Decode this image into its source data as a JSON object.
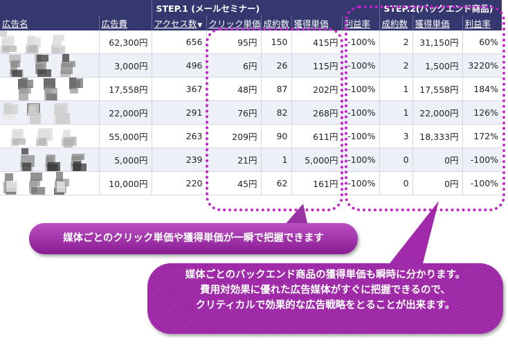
{
  "table": {
    "group_headers": {
      "step1": "STEP.1 (メールセミナー)",
      "step2": "STEP.2(バックエンド商品)"
    },
    "columns": [
      "広告名",
      "広告費",
      "アクセス数",
      "クリック単価",
      "成約数",
      "獲得単価",
      "利益率",
      "成約数",
      "獲得単価",
      "利益率"
    ],
    "sort_indicator": "▼",
    "rows": [
      {
        "cost": "62,300円",
        "access": "656",
        "cpc": "95円",
        "conv": "150",
        "cpa": "415円",
        "roi": "-100%",
        "conv2": "2",
        "cpa2": "31,150円",
        "roi2": "60%"
      },
      {
        "cost": "3,000円",
        "access": "496",
        "cpc": "6円",
        "conv": "26",
        "cpa": "115円",
        "roi": "-100%",
        "conv2": "2",
        "cpa2": "1,500円",
        "roi2": "3220%"
      },
      {
        "cost": "17,558円",
        "access": "367",
        "cpc": "48円",
        "conv": "87",
        "cpa": "202円",
        "roi": "-100%",
        "conv2": "1",
        "cpa2": "17,558円",
        "roi2": "184%"
      },
      {
        "cost": "22,000円",
        "access": "291",
        "cpc": "76円",
        "conv": "82",
        "cpa": "268円",
        "roi": "-100%",
        "conv2": "1",
        "cpa2": "22,000円",
        "roi2": "126%"
      },
      {
        "cost": "55,000円",
        "access": "263",
        "cpc": "209円",
        "conv": "90",
        "cpa": "611円",
        "roi": "-100%",
        "conv2": "3",
        "cpa2": "18,333円",
        "roi2": "172%"
      },
      {
        "cost": "5,000円",
        "access": "239",
        "cpc": "21円",
        "conv": "1",
        "cpa": "5,000円",
        "roi": "-100%",
        "conv2": "0",
        "cpa2": "0円",
        "roi2": "-100%"
      },
      {
        "cost": "10,000円",
        "access": "220",
        "cpc": "45円",
        "conv": "62",
        "cpa": "161円",
        "roi": "-100%",
        "conv2": "0",
        "cpa2": "0円",
        "roi2": "-100%"
      }
    ]
  },
  "callouts": {
    "first": "媒体ごとのクリック単価や獲得単価が一瞬で把握できます",
    "second_lines": [
      "媒体ごとのバックエンド商品の獲得単価も瞬時に分かります。",
      "費用対効果に優れた広告媒体がすぐに把握できるので、",
      "クリティカルで効果的な広告戦略をとることが出来ます。"
    ]
  },
  "colors": {
    "header_bg": "#35386f",
    "row_alt_bg": "#eef0f8",
    "highlight_dots": "#c321c8",
    "bubble_purple": "#9a24a4"
  }
}
